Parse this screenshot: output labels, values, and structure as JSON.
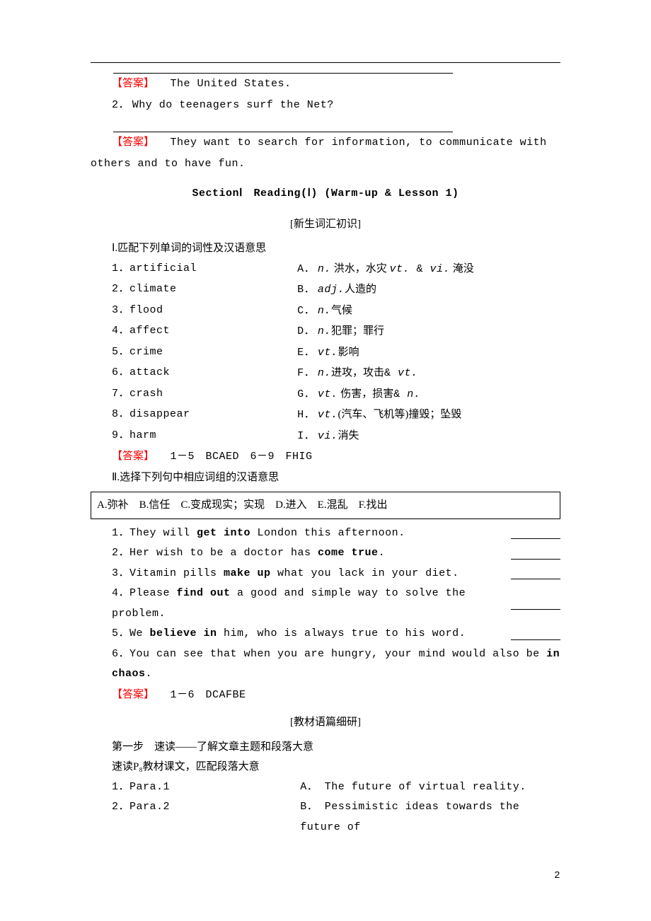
{
  "colors": {
    "answer": "#ff0000",
    "text": "#000000",
    "bg": "#ffffff",
    "border": "#000000"
  },
  "typography": {
    "body_fontsize": 15,
    "mono_family": "Courier New",
    "cjk_family": "SimSun"
  },
  "page_number": "2",
  "answer_label": "【答案】",
  "intro": {
    "ans1": "The United States.",
    "q2": "Why do teenagers surf the Net?",
    "q2_num": "2．",
    "ans2": "They want to search for information, to communicate with others and to have fun."
  },
  "section_title": "SectionⅠ　Reading(Ⅰ) (Warm-up & Lesson 1)",
  "vocab": {
    "heading_bracket": "[新生词汇初识]",
    "task1_title": "Ⅰ.匹配下列单词的词性及汉语意思",
    "pairs": [
      {
        "l_num": "1．",
        "l_word": "artificial",
        "r_key": "A．",
        "r_pos": "n.",
        "r_def": "洪水，水灾",
        "r_pos2": "vt.",
        "r_amp": " & ",
        "r_pos3": "vi.",
        "r_def2": "淹没"
      },
      {
        "l_num": "2．",
        "l_word": "climate",
        "r_key": "B．",
        "r_pos": "adj.",
        "r_def": "人造的"
      },
      {
        "l_num": "3．",
        "l_word": "flood",
        "r_key": "C．",
        "r_pos": "n.",
        "r_def": "气候"
      },
      {
        "l_num": "4．",
        "l_word": "affect",
        "r_key": "D．",
        "r_pos": "n.",
        "r_def": "犯罪；罪行"
      },
      {
        "l_num": "5．",
        "l_word": "crime",
        "r_key": "E．",
        "r_pos": "vt.",
        "r_def": "影响"
      },
      {
        "l_num": "6．",
        "l_word": "attack",
        "r_key": "F．",
        "r_pos": "n.",
        "r_amp": "& ",
        "r_pos2": "vt.",
        "r_def": "进攻，攻击"
      },
      {
        "l_num": "7．",
        "l_word": "crash",
        "r_key": "G．",
        "r_pos": "vt.",
        "r_amp": "& ",
        "r_pos2": "n.",
        "r_def": " 伤害，损害"
      },
      {
        "l_num": "8．",
        "l_word": "disappear",
        "r_key": "H．",
        "r_pos": "vt.",
        "r_def": "(汽车、飞机等)撞毁；坠毁"
      },
      {
        "l_num": "9．",
        "l_word": "harm",
        "r_key": "I．",
        "r_pos": "vi.",
        "r_def": "消失"
      }
    ],
    "ans1": "1－5　BCAED　6－9　FHIG",
    "task2_title": "Ⅱ.选择下列句中相应词组的汉语意思",
    "choices": "A.弥补　B.信任　C.变成现实；实现　D.进入　E.混乱　F.找出",
    "sentences": [
      {
        "n": "1．",
        "pre": "They will ",
        "b": "get into",
        "post": " London this afternoon."
      },
      {
        "n": "2．",
        "pre": "Her wish to be a doctor has ",
        "b": "come true",
        "post": "."
      },
      {
        "n": "3．",
        "pre": "Vitamin pills ",
        "b": "make up",
        "post": " what you lack in your diet."
      },
      {
        "n": "4．",
        "pre": "Please ",
        "b": "find out",
        "post": " a good and simple way to solve the problem."
      },
      {
        "n": "5．",
        "pre": "We ",
        "b": "believe in",
        "post": " him, who is always true to his word."
      },
      {
        "n": "6．",
        "pre": "You can see that when you are hungry, your mind would also be ",
        "b": "in chaos",
        "post": "."
      }
    ],
    "ans2": "1－6　DCAFBE"
  },
  "textstudy": {
    "heading_bracket": "[教材语篇细研]",
    "step1": "第一步　速读——了解文章主题和段落大意",
    "instruction": "速读P₈教材课文，匹配段落大意",
    "paras": [
      {
        "l_n": "1．",
        "l": "Para.1",
        "r_key": "A．",
        "r": "The future of virtual reality."
      },
      {
        "l_n": "2．",
        "l": "Para.2",
        "r_key": "B．",
        "r": "Pessimistic ideas towards the future of"
      }
    ]
  }
}
